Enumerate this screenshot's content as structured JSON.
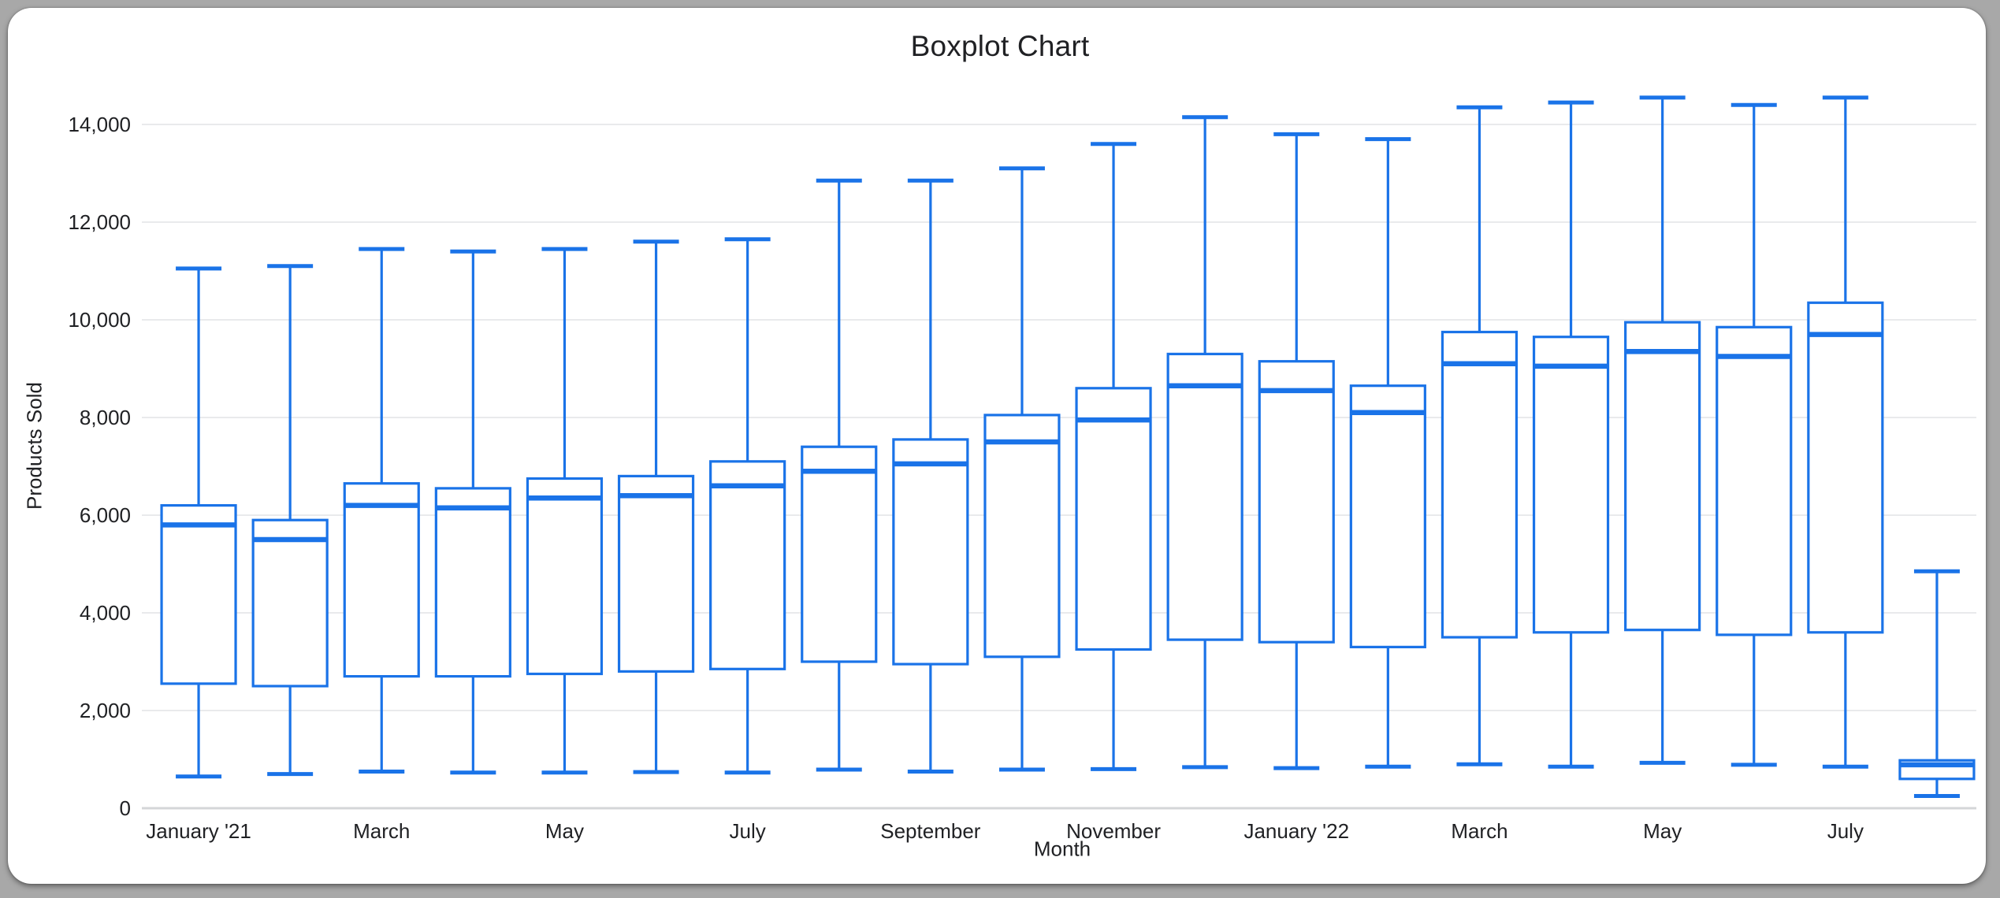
{
  "window": {
    "background_color": "#a8a8a8",
    "card_color": "#ffffff"
  },
  "chart_data": {
    "type": "boxplot",
    "title": "Boxplot Chart",
    "xlabel": "Month",
    "ylabel": "Products Sold",
    "ylim": [
      0,
      14500
    ],
    "grid": true,
    "legend": "none",
    "series_color": "#1a73e8",
    "grid_color": "#e9eaec",
    "baseline_color": "#d4d6d8",
    "text_color": "#202124",
    "y_ticks": [
      {
        "value": 0,
        "label": "0"
      },
      {
        "value": 2000,
        "label": "2,000"
      },
      {
        "value": 4000,
        "label": "4,000"
      },
      {
        "value": 6000,
        "label": "6,000"
      },
      {
        "value": 8000,
        "label": "8,000"
      },
      {
        "value": 10000,
        "label": "10,000"
      },
      {
        "value": 12000,
        "label": "12,000"
      },
      {
        "value": 14000,
        "label": "14,000"
      }
    ],
    "boxes": [
      {
        "x_label": "January '21",
        "low": 650,
        "q1": 2550,
        "median": 5800,
        "q3": 6200,
        "high": 11050
      },
      {
        "x_label": "",
        "low": 700,
        "q1": 2500,
        "median": 5500,
        "q3": 5900,
        "high": 11100
      },
      {
        "x_label": "March",
        "low": 750,
        "q1": 2700,
        "median": 6200,
        "q3": 6650,
        "high": 11450
      },
      {
        "x_label": "",
        "low": 730,
        "q1": 2700,
        "median": 6150,
        "q3": 6550,
        "high": 11400
      },
      {
        "x_label": "May",
        "low": 730,
        "q1": 2750,
        "median": 6350,
        "q3": 6750,
        "high": 11450
      },
      {
        "x_label": "",
        "low": 740,
        "q1": 2800,
        "median": 6400,
        "q3": 6800,
        "high": 11600
      },
      {
        "x_label": "July",
        "low": 730,
        "q1": 2850,
        "median": 6600,
        "q3": 7100,
        "high": 11650
      },
      {
        "x_label": "",
        "low": 790,
        "q1": 3000,
        "median": 6900,
        "q3": 7400,
        "high": 12850
      },
      {
        "x_label": "September",
        "low": 750,
        "q1": 2950,
        "median": 7050,
        "q3": 7550,
        "high": 12850
      },
      {
        "x_label": "",
        "low": 790,
        "q1": 3100,
        "median": 7500,
        "q3": 8050,
        "high": 13100
      },
      {
        "x_label": "November",
        "low": 800,
        "q1": 3250,
        "median": 7950,
        "q3": 8600,
        "high": 13600
      },
      {
        "x_label": "",
        "low": 840,
        "q1": 3450,
        "median": 8650,
        "q3": 9300,
        "high": 14150
      },
      {
        "x_label": "January '22",
        "low": 820,
        "q1": 3400,
        "median": 8550,
        "q3": 9150,
        "high": 13800
      },
      {
        "x_label": "",
        "low": 850,
        "q1": 3300,
        "median": 8100,
        "q3": 8650,
        "high": 13700
      },
      {
        "x_label": "March",
        "low": 900,
        "q1": 3500,
        "median": 9100,
        "q3": 9750,
        "high": 14350
      },
      {
        "x_label": "",
        "low": 850,
        "q1": 3600,
        "median": 9050,
        "q3": 9650,
        "high": 14450
      },
      {
        "x_label": "May",
        "low": 930,
        "q1": 3650,
        "median": 9350,
        "q3": 9950,
        "high": 14550
      },
      {
        "x_label": "",
        "low": 890,
        "q1": 3550,
        "median": 9250,
        "q3": 9850,
        "high": 14400
      },
      {
        "x_label": "July",
        "low": 850,
        "q1": 3600,
        "median": 9700,
        "q3": 10350,
        "high": 14550
      },
      {
        "x_label": "",
        "low": 250,
        "q1": 600,
        "median": 890,
        "q3": 980,
        "high": 4850
      }
    ]
  }
}
